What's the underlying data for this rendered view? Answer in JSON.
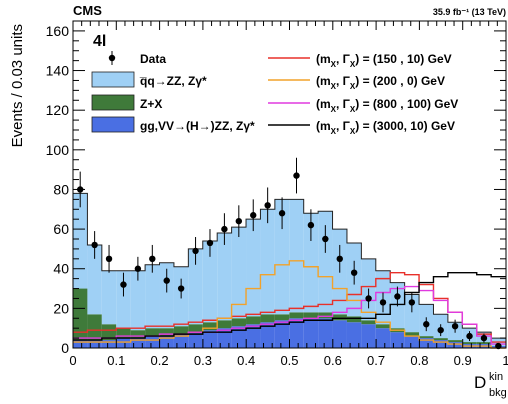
{
  "chart_data": {
    "type": "histogram",
    "experiment": "CMS",
    "lumi": "35.9 fb⁻¹ (13 TeV)",
    "channel": "4l",
    "xlabel_main": "D",
    "xlabel_sup": "kin",
    "xlabel_sub": "bkg",
    "ylabel": "Events / 0.03 units",
    "xlim": [
      0,
      1
    ],
    "ylim": [
      0,
      165
    ],
    "x_ticks": [
      "0",
      "0.1",
      "0.2",
      "0.3",
      "0.4",
      "0.5",
      "0.6",
      "0.7",
      "0.8",
      "0.9",
      "1"
    ],
    "y_ticks": [
      "0",
      "20",
      "40",
      "60",
      "80",
      "100",
      "120",
      "140",
      "160"
    ],
    "bin_width": 0.0333,
    "n_bins": 30,
    "stack": [
      {
        "name": "gg,VV→(H→)ZZ, Zγ*",
        "color": "#4a6fe3",
        "values": [
          4,
          4,
          4,
          5,
          5,
          6,
          6,
          7,
          8,
          9,
          10,
          11,
          12,
          13,
          14,
          15,
          15,
          15,
          14,
          13,
          12,
          10,
          8,
          6,
          5,
          4,
          3,
          2,
          2,
          1
        ]
      },
      {
        "name": "Z+X",
        "color": "#3f7a3a",
        "values": [
          26,
          13,
          8,
          5,
          4,
          4,
          4,
          4,
          4,
          4,
          4,
          4,
          4,
          4,
          3,
          3,
          3,
          3,
          3,
          3,
          2,
          2,
          2,
          2,
          1,
          1,
          1,
          1,
          1,
          0
        ]
      },
      {
        "name": "q̅q→ZZ, Zγ*",
        "color": "#9fd0f5",
        "values": [
          48,
          35,
          27,
          29,
          30,
          32,
          33,
          30,
          38,
          41,
          44,
          46,
          49,
          53,
          58,
          57,
          50,
          51,
          43,
          37,
          31,
          27,
          23,
          19,
          16,
          12,
          9,
          7,
          5,
          4
        ]
      }
    ],
    "stack_totals": [
      78,
      52,
      39,
      39,
      39,
      42,
      43,
      41,
      50,
      54,
      58,
      61,
      65,
      70,
      75,
      75,
      68,
      69,
      60,
      53,
      45,
      39,
      33,
      27,
      22,
      17,
      13,
      10,
      8,
      5
    ],
    "data_points": {
      "name": "Data",
      "values": [
        80,
        52,
        45,
        32,
        40,
        45,
        34,
        30,
        49,
        53,
        60,
        64,
        67,
        72,
        68,
        87,
        62,
        55,
        45,
        38,
        25,
        23,
        26,
        23,
        12,
        9,
        11,
        6,
        5,
        1
      ],
      "errors": [
        9,
        7,
        7,
        6,
        6,
        7,
        6,
        5,
        7,
        7,
        8,
        8,
        8,
        9,
        8,
        9,
        8,
        7,
        7,
        6,
        5,
        5,
        5,
        5,
        3.5,
        3,
        3.3,
        2.5,
        2.3,
        1
      ]
    },
    "signal_lines": [
      {
        "name": "(m, Γ) = (150 ,  10) GeV",
        "sub": "X",
        "color": "#e8302a",
        "values": [
          8,
          9,
          9,
          10,
          10,
          11,
          11,
          12,
          13,
          14,
          15,
          16,
          17,
          18,
          19,
          20,
          21,
          22,
          24,
          27,
          31,
          35,
          38,
          37,
          32,
          25,
          18,
          12,
          7,
          3
        ]
      },
      {
        "name": "(m, Γ) = (200 ,   0) GeV",
        "sub": "X",
        "color": "#f2a22a",
        "values": [
          3,
          3,
          3,
          3,
          4,
          4,
          5,
          6,
          8,
          10,
          15,
          22,
          30,
          37,
          42,
          44,
          41,
          36,
          30,
          24,
          18,
          13,
          9,
          6,
          4,
          3,
          2,
          1,
          1,
          0
        ]
      },
      {
        "name": "(m, Γ) = (800 , 100) GeV",
        "sub": "X",
        "color": "#e03adf",
        "values": [
          5,
          5,
          5,
          6,
          6,
          6,
          7,
          7,
          8,
          8,
          9,
          10,
          11,
          12,
          13,
          14,
          15,
          16,
          18,
          20,
          24,
          28,
          30,
          31,
          29,
          24,
          18,
          12,
          6,
          2
        ]
      },
      {
        "name": "(m, Γ) = (3000,  10) GeV",
        "sub": "X",
        "color": "#000000",
        "values": [
          4,
          4,
          5,
          5,
          5,
          6,
          6,
          7,
          7,
          8,
          8,
          9,
          10,
          11,
          12,
          13,
          14,
          14,
          15,
          15,
          15,
          17,
          22,
          28,
          33,
          36,
          38,
          38,
          37,
          36
        ]
      }
    ]
  },
  "legend_data_label": "Data"
}
